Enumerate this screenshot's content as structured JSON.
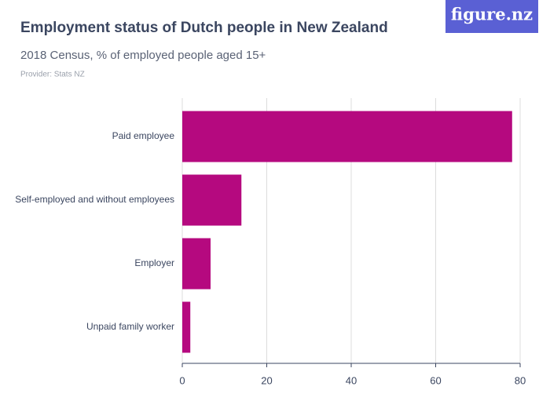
{
  "logo": "figure.nz",
  "chart_data": {
    "type": "bar",
    "orientation": "horizontal",
    "title": "Employment status of Dutch people in New Zealand",
    "subtitle": "2018 Census, % of employed people aged 15+",
    "provider": "Provider: Stats NZ",
    "categories": [
      "Paid employee",
      "Self-employed and without employees",
      "Employer",
      "Unpaid family worker"
    ],
    "values": [
      78.1,
      14.0,
      6.7,
      1.9
    ],
    "color": "#b5097f",
    "xlim": [
      0,
      80
    ],
    "xticks": [
      0,
      20,
      40,
      60,
      80
    ],
    "grid": true
  }
}
